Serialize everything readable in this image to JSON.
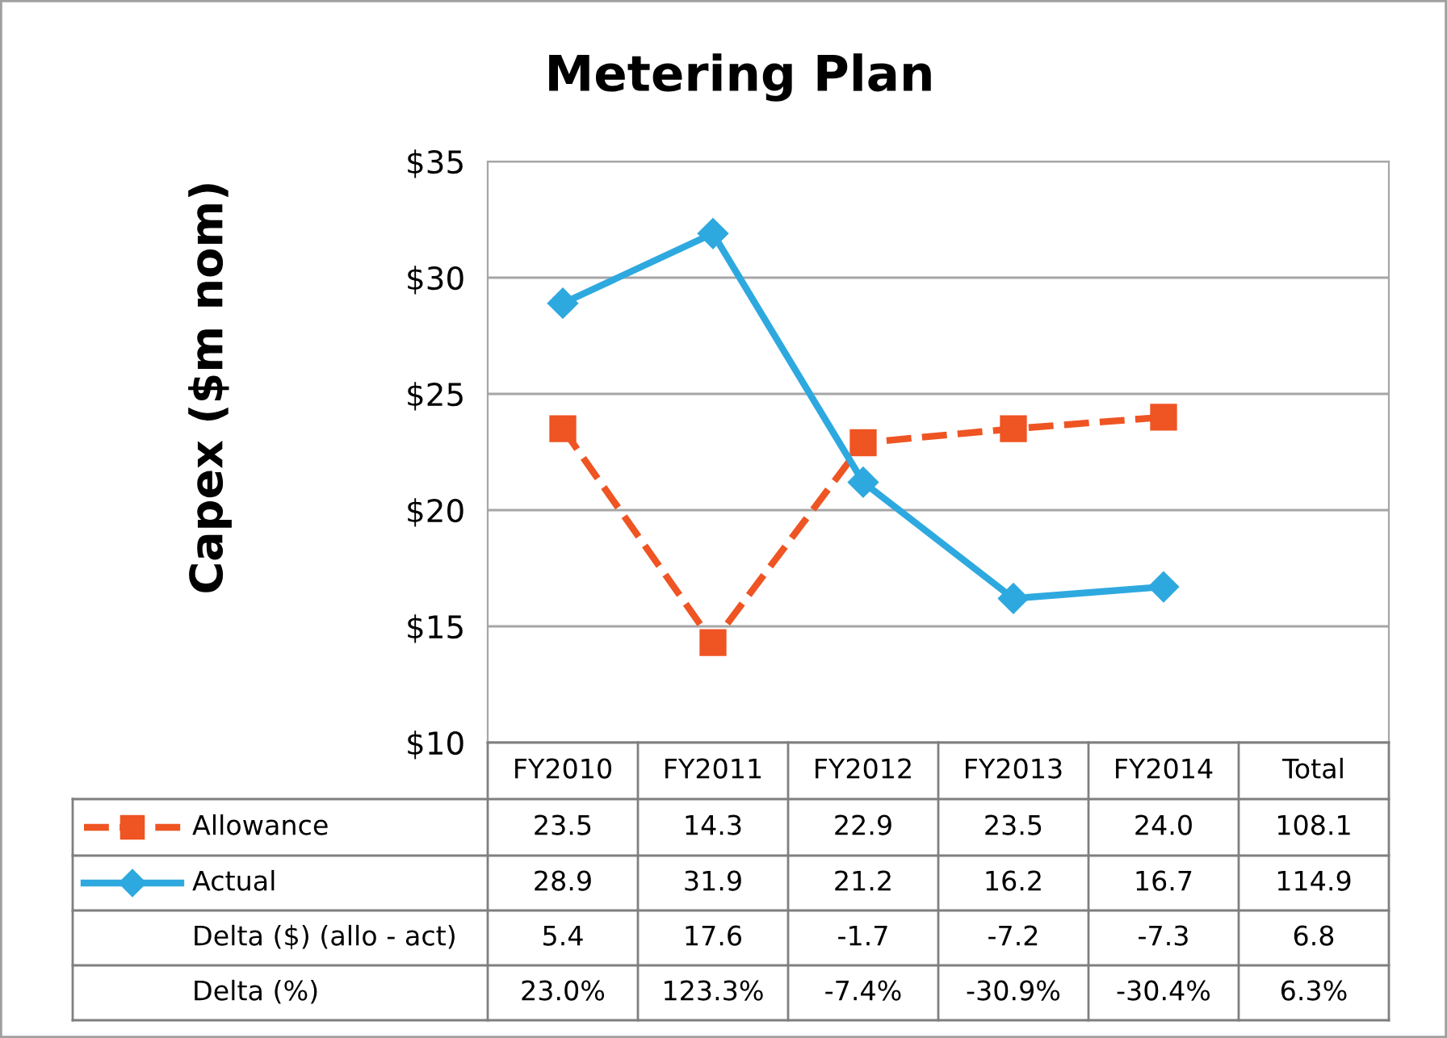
{
  "chart_data": {
    "type": "line",
    "title": "Metering Plan",
    "ylabel": "Capex ($m nom)",
    "categories": [
      "FY2010",
      "FY2011",
      "FY2012",
      "FY2013",
      "FY2014",
      "Total"
    ],
    "series": [
      {
        "name": "Allowance",
        "color": "#ef5423",
        "marker": "square",
        "line_style": "dashed",
        "values": [
          23.5,
          14.3,
          22.9,
          23.5,
          24.0,
          null
        ],
        "value_labels": [
          "23.5",
          "14.3",
          "22.9",
          "23.5",
          "24.0",
          "108.1"
        ]
      },
      {
        "name": "Actual",
        "color": "#2ea9df",
        "marker": "diamond",
        "line_style": "solid",
        "values": [
          28.9,
          31.9,
          21.2,
          16.2,
          16.7,
          null
        ],
        "value_labels": [
          "28.9",
          "31.9",
          "21.2",
          "16.2",
          "16.7",
          "114.9"
        ]
      }
    ],
    "ylim": [
      10,
      35
    ],
    "yticks": [
      {
        "value": 10,
        "label": "$10"
      },
      {
        "value": 15,
        "label": "$15"
      },
      {
        "value": 20,
        "label": "$20"
      },
      {
        "value": 25,
        "label": "$25"
      },
      {
        "value": 30,
        "label": "$30"
      },
      {
        "value": 35,
        "label": "$35"
      }
    ],
    "grid": "y",
    "legend": "bottom",
    "tick_labels": "y",
    "annotations": [
      "Delta ($) (allo - act)",
      "5.4",
      "17.6",
      "-1.7",
      "-7.2",
      "-7.3",
      "6.8",
      "Delta (%)",
      "23.0%",
      "123.3%",
      "-7.4%",
      "-30.9%",
      "-30.4%",
      "6.3%"
    ]
  }
}
